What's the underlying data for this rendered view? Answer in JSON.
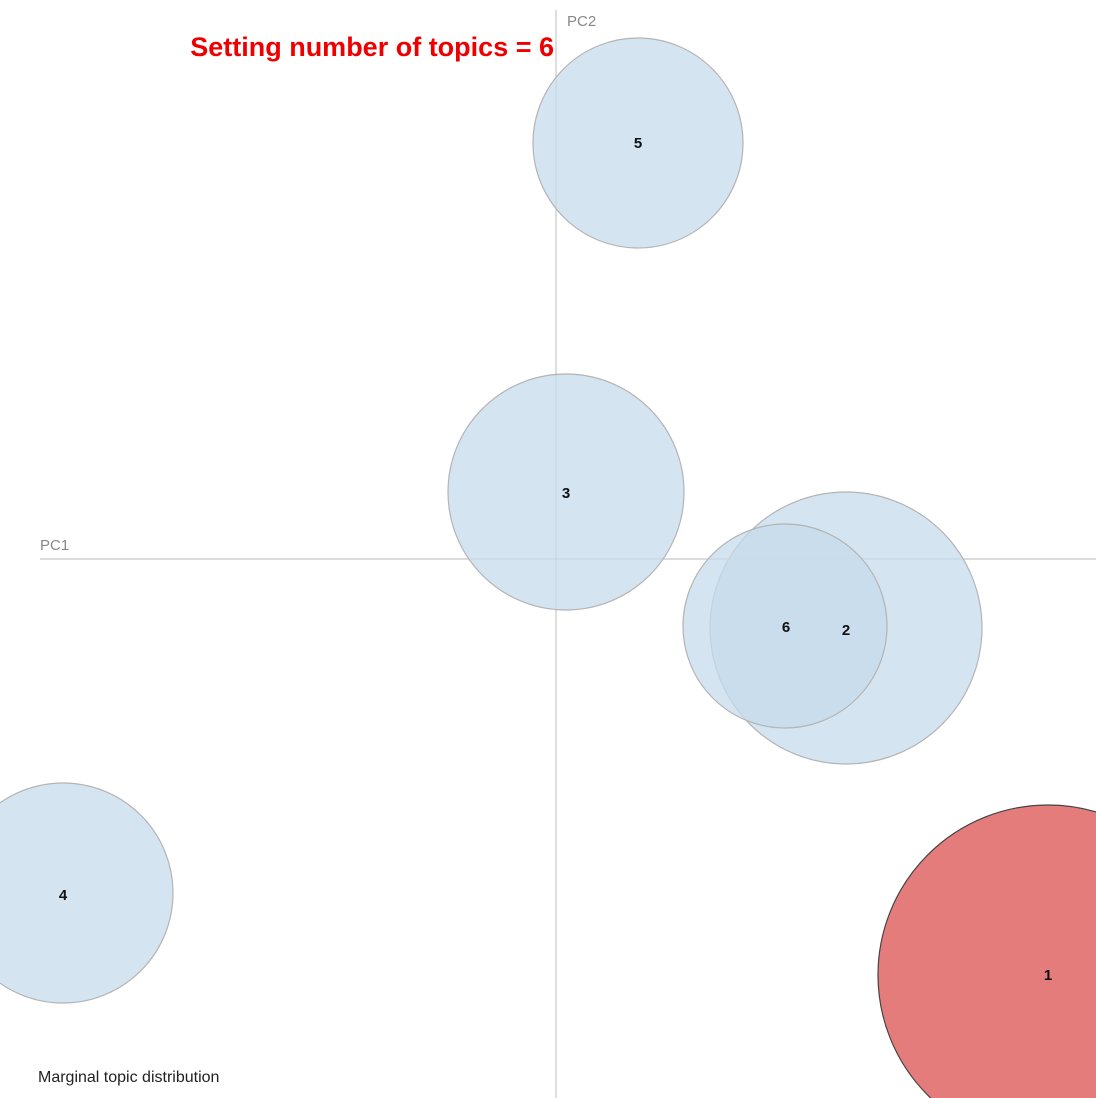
{
  "title": "Setting number of topics = 6",
  "axes": {
    "x_label": "PC1",
    "y_label": "PC2"
  },
  "topics": [
    {
      "label": "5"
    },
    {
      "label": "3"
    },
    {
      "label": "2"
    },
    {
      "label": "6"
    },
    {
      "label": "4"
    },
    {
      "label": "1"
    }
  ],
  "footer": "Marginal topic distribution"
}
